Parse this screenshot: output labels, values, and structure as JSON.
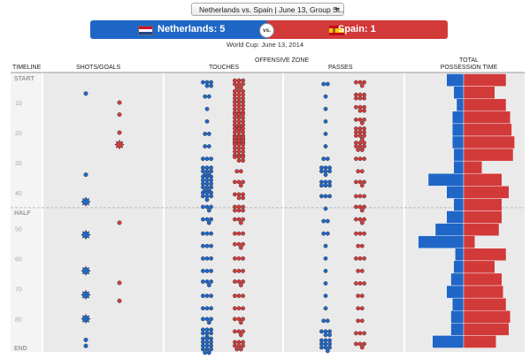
{
  "selector": {
    "value": "Netherlands vs. Spain | June 13, Group St..."
  },
  "match": {
    "home": {
      "label": "Netherlands: 5",
      "color": "#1f66c6",
      "flag": "netherlands-flag"
    },
    "away": {
      "label": "Spain: 1",
      "color": "#d23a3a",
      "flag": "spain-flag"
    },
    "vs_label": "vs.",
    "subtitle": "World Cup: June 13, 2014"
  },
  "headers": {
    "timeline": "TIMELINE",
    "shots": "SHOTS/GOALS",
    "offensive_zone": "OFFENSIVE ZONE",
    "touches": "TOUCHES",
    "passes": "PASSES",
    "possession_line1": "TOTAL",
    "possession_line2": "POSSESSION TIME"
  },
  "timeline_labels": {
    "start": "START",
    "half": "HALF",
    "end": "END",
    "minutes": [
      "10",
      "20",
      "30",
      "40",
      "50",
      "60",
      "70",
      "80"
    ]
  },
  "chart_data": {
    "type": "scatter",
    "x_axis": "minute",
    "xlim": [
      0,
      93
    ],
    "series": [
      {
        "team": "Netherlands",
        "color": "#1f66c6",
        "shots": [
          {
            "minute": 7,
            "goal": false
          },
          {
            "minute": 34,
            "goal": false
          },
          {
            "minute": 43,
            "goal": true
          },
          {
            "minute": 52,
            "goal": true
          },
          {
            "minute": 64,
            "goal": true
          },
          {
            "minute": 72,
            "goal": true
          },
          {
            "minute": 80,
            "goal": true
          },
          {
            "minute": 87,
            "goal": false
          },
          {
            "minute": 89,
            "goal": false
          }
        ],
        "touches": [
          5,
          2,
          1,
          1,
          2,
          2,
          3,
          8,
          14,
          7,
          4,
          4,
          3,
          3,
          3,
          3,
          4,
          3,
          3,
          4,
          7,
          14
        ],
        "passes": [
          2,
          1,
          1,
          1,
          1,
          1,
          2,
          7,
          6,
          3,
          1,
          2,
          2,
          1,
          1,
          1,
          1,
          1,
          1,
          2,
          5,
          10
        ]
      },
      {
        "team": "Spain",
        "color": "#d23a3a",
        "shots": [
          {
            "minute": 10,
            "goal": false
          },
          {
            "minute": 14,
            "goal": false
          },
          {
            "minute": 20,
            "goal": false
          },
          {
            "minute": 24,
            "goal": true
          },
          {
            "minute": 48,
            "goal": false
          },
          {
            "minute": 68,
            "goal": false
          },
          {
            "minute": 74,
            "goal": false
          }
        ],
        "touches": [
          8,
          12,
          13,
          14,
          18,
          18,
          5,
          2,
          4,
          5,
          6,
          4,
          3,
          4,
          3,
          3,
          4,
          3,
          3,
          4,
          4,
          8
        ],
        "passes": [
          4,
          6,
          5,
          4,
          10,
          8,
          3,
          2,
          4,
          3,
          4,
          4,
          3,
          2,
          3,
          2,
          3,
          2,
          2,
          2,
          3,
          4
        ]
      }
    ],
    "possession": {
      "home": [
        12,
        7,
        5,
        8,
        8,
        8,
        7,
        7,
        25,
        12,
        7,
        12,
        20,
        32,
        6,
        7,
        9,
        12,
        8,
        9,
        9,
        22
      ],
      "away": [
        30,
        22,
        30,
        33,
        34,
        36,
        35,
        13,
        27,
        32,
        27,
        27,
        25,
        8,
        30,
        22,
        27,
        28,
        30,
        33,
        32,
        23
      ]
    }
  }
}
